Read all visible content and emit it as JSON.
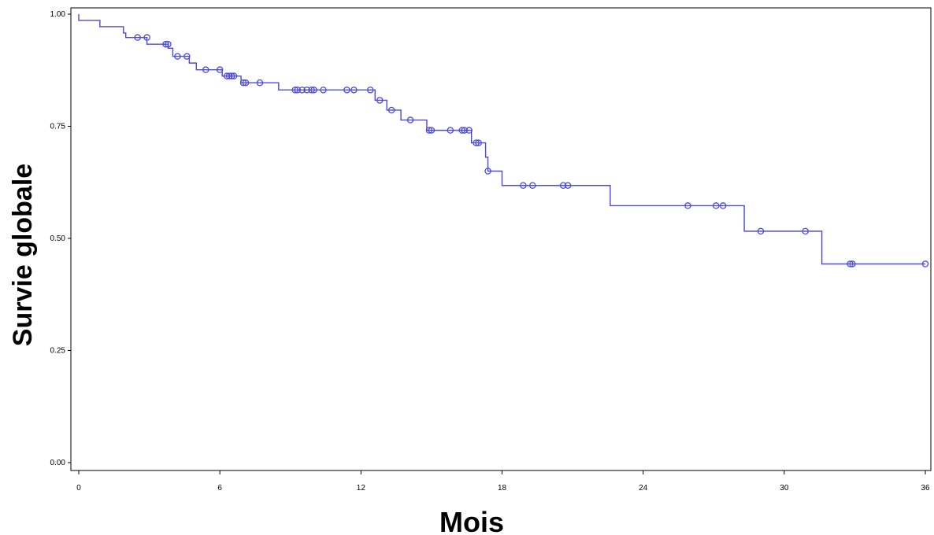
{
  "chart_data": {
    "type": "line",
    "subtype": "kaplan-meier-step",
    "xlabel": "Mois",
    "ylabel": "Survie globale",
    "xlim": [
      0,
      36
    ],
    "ylim": [
      0,
      1
    ],
    "xticks": [
      "0",
      "6",
      "12",
      "18",
      "24",
      "30",
      "36"
    ],
    "yticks": [
      "0.00",
      "0.25",
      "0.50",
      "0.75",
      "1.00"
    ],
    "grid": false,
    "legend": "none",
    "line_color": "#4a4adc",
    "series": [
      {
        "steps": [
          [
            0,
            1.0
          ],
          [
            0.0,
            0.986
          ],
          [
            0.9,
            0.972
          ],
          [
            1.9,
            0.958
          ],
          [
            2.0,
            0.948
          ],
          [
            2.9,
            0.933
          ],
          [
            3.8,
            0.924
          ],
          [
            4.0,
            0.906
          ],
          [
            4.7,
            0.891
          ],
          [
            5.0,
            0.876
          ],
          [
            6.1,
            0.862
          ],
          [
            6.9,
            0.847
          ],
          [
            8.5,
            0.831
          ],
          [
            12.6,
            0.808
          ],
          [
            13.1,
            0.786
          ],
          [
            13.7,
            0.764
          ],
          [
            14.8,
            0.741
          ],
          [
            16.7,
            0.713
          ],
          [
            17.3,
            0.681
          ],
          [
            17.4,
            0.65
          ],
          [
            18.0,
            0.618
          ],
          [
            22.6,
            0.573
          ],
          [
            28.3,
            0.516
          ],
          [
            31.6,
            0.443
          ],
          [
            36,
            0.443
          ]
        ],
        "censored": [
          [
            2.5,
            0.948
          ],
          [
            2.9,
            0.948
          ],
          [
            3.7,
            0.933
          ],
          [
            3.8,
            0.933
          ],
          [
            4.2,
            0.906
          ],
          [
            4.6,
            0.906
          ],
          [
            5.4,
            0.876
          ],
          [
            6.0,
            0.876
          ],
          [
            6.3,
            0.862
          ],
          [
            6.4,
            0.862
          ],
          [
            6.5,
            0.862
          ],
          [
            6.6,
            0.862
          ],
          [
            7.0,
            0.847
          ],
          [
            7.1,
            0.847
          ],
          [
            7.7,
            0.847
          ],
          [
            9.2,
            0.831
          ],
          [
            9.3,
            0.831
          ],
          [
            9.5,
            0.831
          ],
          [
            9.7,
            0.831
          ],
          [
            9.9,
            0.831
          ],
          [
            10.0,
            0.831
          ],
          [
            10.4,
            0.831
          ],
          [
            11.4,
            0.831
          ],
          [
            11.7,
            0.831
          ],
          [
            12.4,
            0.831
          ],
          [
            12.8,
            0.808
          ],
          [
            13.3,
            0.786
          ],
          [
            14.1,
            0.764
          ],
          [
            14.9,
            0.741
          ],
          [
            15.0,
            0.741
          ],
          [
            15.8,
            0.741
          ],
          [
            16.3,
            0.741
          ],
          [
            16.4,
            0.741
          ],
          [
            16.6,
            0.741
          ],
          [
            16.9,
            0.713
          ],
          [
            17.0,
            0.713
          ],
          [
            17.4,
            0.65
          ],
          [
            18.9,
            0.618
          ],
          [
            19.3,
            0.618
          ],
          [
            20.6,
            0.618
          ],
          [
            20.8,
            0.618
          ],
          [
            25.9,
            0.573
          ],
          [
            27.1,
            0.573
          ],
          [
            27.4,
            0.573
          ],
          [
            29.0,
            0.516
          ],
          [
            30.9,
            0.516
          ],
          [
            32.8,
            0.443
          ],
          [
            32.9,
            0.443
          ],
          [
            36.0,
            0.443
          ]
        ]
      }
    ]
  }
}
